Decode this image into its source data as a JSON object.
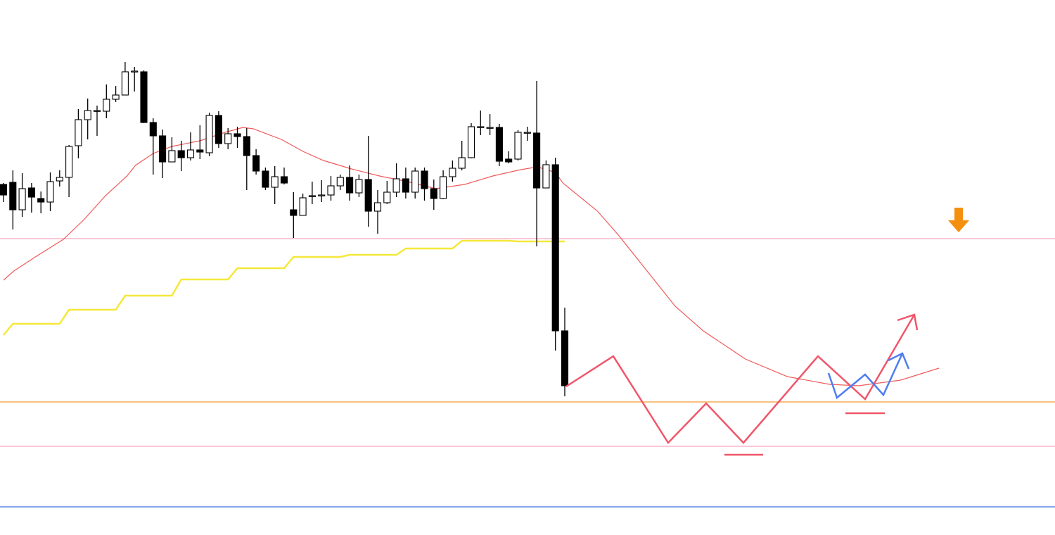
{
  "chart_data": {
    "type": "candlestick",
    "ylim": [
      0,
      760
    ],
    "up_color": "#ffffff",
    "down_color": "#000000",
    "wick_color": "#000000",
    "open": [
      498,
      501,
      462,
      493,
      478,
      473,
      503,
      508,
      553,
      590,
      603,
      602,
      619,
      625,
      659,
      658,
      586,
      567,
      530,
      546,
      536,
      547,
      543,
      596,
      556,
      570,
      566,
      539,
      517,
      494,
      509,
      462,
      454,
      482,
      483,
      483,
      496,
      508,
      486,
      505,
      460,
      472,
      487,
      506,
      487,
      517,
      492,
      478,
      509,
      521,
      536,
      580,
      579,
      579,
      534,
      534,
      572,
      571,
      493,
      526,
      290
    ],
    "high": [
      500,
      518,
      514,
      500,
      488,
      515,
      518,
      554,
      605,
      620,
      610,
      640,
      638,
      672,
      665,
      660,
      592,
      576,
      565,
      560,
      572,
      582,
      600,
      602,
      578,
      580,
      578,
      548,
      522,
      524,
      522,
      487,
      485,
      502,
      504,
      510,
      512,
      525,
      512,
      567,
      490,
      503,
      528,
      522,
      522,
      522,
      505,
      518,
      532,
      560,
      585,
      603,
      598,
      584,
      545,
      575,
      580,
      645,
      532,
      536,
      323
    ],
    "low": [
      473,
      434,
      452,
      458,
      457,
      460,
      495,
      480,
      535,
      562,
      567,
      592,
      615,
      625,
      630,
      585,
      512,
      507,
      530,
      517,
      532,
      534,
      538,
      550,
      548,
      550,
      490,
      512,
      490,
      470,
      498,
      422,
      455,
      470,
      473,
      475,
      490,
      475,
      480,
      438,
      428,
      470,
      480,
      478,
      478,
      475,
      462,
      477,
      502,
      518,
      535,
      568,
      568,
      524,
      528,
      532,
      560,
      410,
      493,
      262,
      197
    ],
    "close": [
      483,
      462,
      492,
      480,
      473,
      502,
      508,
      552,
      590,
      603,
      603,
      619,
      625,
      658,
      659,
      586,
      567,
      530,
      546,
      536,
      547,
      544,
      596,
      556,
      570,
      566,
      539,
      517,
      494,
      509,
      500,
      454,
      479,
      482,
      483,
      496,
      508,
      486,
      505,
      460,
      472,
      487,
      506,
      487,
      517,
      492,
      478,
      509,
      521,
      536,
      580,
      580,
      579,
      531,
      530,
      572,
      572,
      493,
      526,
      290,
      212
    ],
    "lines": [
      {
        "color": "#f05a5a",
        "width": 1.2,
        "x": [
          0,
          1.1,
          3.4,
          6.4,
          8.6,
          10.9,
          13.2,
          14.1,
          16,
          18,
          21,
          23.7,
          25.6,
          26.7,
          29.7,
          32,
          34.2,
          37.2,
          40.2,
          43.2,
          46.2,
          49.3,
          52.3,
          55.3,
          57.1,
          59,
          59.8,
          63.5,
          65.8,
          70,
          71.8,
          74.8,
          79.3,
          83.8,
          88.3,
          91.4,
          95.9,
          100
        ],
        "values": [
          362,
          375,
          395,
          420,
          448,
          482,
          510,
          525,
          542,
          552,
          560,
          572,
          579,
          577,
          562,
          545,
          532,
          520,
          510,
          502,
          492,
          498,
          510,
          519,
          523,
          515,
          500,
          460,
          425,
          355,
          325,
          290,
          250,
          225,
          214,
          212,
          220,
          237
        ]
      },
      {
        "color": "#f5e83a",
        "width": 2.5,
        "x": [
          0,
          1,
          6,
          7,
          12,
          13,
          18,
          19,
          24,
          25,
          30,
          31,
          36,
          37,
          42,
          43,
          48,
          49,
          54,
          55,
          60
        ],
        "values": [
          284,
          300,
          300,
          320,
          320,
          340,
          340,
          363,
          363,
          379,
          379,
          395,
          395,
          398,
          398,
          407,
          407,
          418,
          418,
          417,
          417
        ]
      }
    ],
    "levels": [
      {
        "value": 421,
        "color": "#f4a6c0"
      },
      {
        "value": 189,
        "color": "#f39c33"
      },
      {
        "value": 126,
        "color": "#f4a6c0"
      },
      {
        "value": 40,
        "color": "#3b6fe0"
      }
    ]
  }
}
